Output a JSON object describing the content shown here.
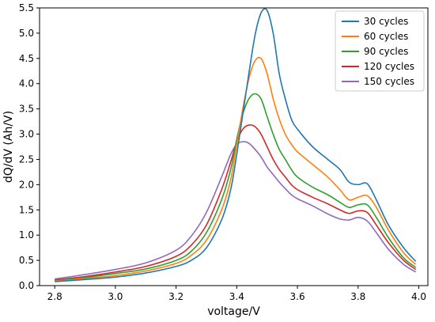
{
  "chart_data": {
    "type": "line",
    "title": "",
    "xlabel": "voltage/V",
    "ylabel": "dQ/dV (Ah/V)",
    "xlim": [
      2.75,
      4.03
    ],
    "ylim": [
      0,
      5.5
    ],
    "xticks": [
      2.8,
      3.0,
      3.2,
      3.4,
      3.6,
      3.8,
      4.0
    ],
    "xtick_labels": [
      "2.8",
      "3.0",
      "3.2",
      "3.4",
      "3.6",
      "3.8",
      "4.0"
    ],
    "yticks": [
      0,
      0.5,
      1.0,
      1.5,
      2.0,
      2.5,
      3.0,
      3.5,
      4.0,
      4.5,
      5.0,
      5.5
    ],
    "ytick_labels": [
      "0.0",
      "0.5",
      "1.0",
      "1.5",
      "2.0",
      "2.5",
      "3.0",
      "3.5",
      "4.0",
      "4.5",
      "5.0",
      "5.5"
    ],
    "grid": false,
    "legend_position": "top-right",
    "series": [
      {
        "name": "30 cycles",
        "color": "#1f77b4",
        "x": [
          2.8,
          2.9,
          3.0,
          3.1,
          3.2,
          3.25,
          3.3,
          3.35,
          3.38,
          3.4,
          3.42,
          3.44,
          3.46,
          3.48,
          3.5,
          3.52,
          3.54,
          3.56,
          3.58,
          3.6,
          3.65,
          3.7,
          3.74,
          3.77,
          3.8,
          3.83,
          3.86,
          3.9,
          3.95,
          3.99
        ],
        "y": [
          0.08,
          0.12,
          0.17,
          0.25,
          0.38,
          0.5,
          0.75,
          1.3,
          1.9,
          2.6,
          3.4,
          4.2,
          4.95,
          5.4,
          5.45,
          5.0,
          4.2,
          3.7,
          3.3,
          3.1,
          2.75,
          2.5,
          2.3,
          2.05,
          2.0,
          2.02,
          1.7,
          1.2,
          0.75,
          0.48
        ]
      },
      {
        "name": "60 cycles",
        "color": "#ff7f0e",
        "x": [
          2.8,
          2.9,
          3.0,
          3.1,
          3.2,
          3.25,
          3.3,
          3.35,
          3.38,
          3.4,
          3.42,
          3.44,
          3.46,
          3.48,
          3.5,
          3.52,
          3.54,
          3.56,
          3.58,
          3.6,
          3.65,
          3.7,
          3.74,
          3.77,
          3.8,
          3.83,
          3.86,
          3.9,
          3.95,
          3.99
        ],
        "y": [
          0.09,
          0.14,
          0.2,
          0.29,
          0.44,
          0.6,
          0.9,
          1.5,
          2.1,
          2.8,
          3.5,
          4.1,
          4.45,
          4.5,
          4.2,
          3.7,
          3.3,
          3.0,
          2.8,
          2.65,
          2.4,
          2.15,
          1.9,
          1.7,
          1.75,
          1.78,
          1.55,
          1.1,
          0.65,
          0.42
        ]
      },
      {
        "name": "90 cycles",
        "color": "#2ca02c",
        "x": [
          2.8,
          2.9,
          3.0,
          3.1,
          3.2,
          3.25,
          3.3,
          3.35,
          3.38,
          3.4,
          3.42,
          3.44,
          3.46,
          3.48,
          3.5,
          3.52,
          3.54,
          3.56,
          3.58,
          3.6,
          3.65,
          3.7,
          3.74,
          3.77,
          3.8,
          3.83,
          3.86,
          3.9,
          3.95,
          3.99
        ],
        "y": [
          0.1,
          0.16,
          0.24,
          0.33,
          0.5,
          0.68,
          1.05,
          1.7,
          2.3,
          2.9,
          3.4,
          3.7,
          3.8,
          3.7,
          3.35,
          3.0,
          2.7,
          2.5,
          2.3,
          2.15,
          1.95,
          1.8,
          1.65,
          1.55,
          1.6,
          1.6,
          1.35,
          0.95,
          0.55,
          0.36
        ]
      },
      {
        "name": "120 cycles",
        "color": "#d62728",
        "x": [
          2.8,
          2.9,
          3.0,
          3.1,
          3.2,
          3.25,
          3.3,
          3.35,
          3.38,
          3.4,
          3.42,
          3.44,
          3.46,
          3.48,
          3.5,
          3.52,
          3.54,
          3.56,
          3.58,
          3.6,
          3.65,
          3.7,
          3.74,
          3.77,
          3.8,
          3.83,
          3.86,
          3.9,
          3.95,
          3.99
        ],
        "y": [
          0.11,
          0.18,
          0.27,
          0.38,
          0.58,
          0.8,
          1.2,
          1.9,
          2.45,
          2.85,
          3.1,
          3.18,
          3.15,
          3.0,
          2.75,
          2.5,
          2.3,
          2.15,
          2.0,
          1.9,
          1.75,
          1.62,
          1.5,
          1.43,
          1.48,
          1.45,
          1.2,
          0.85,
          0.5,
          0.32
        ]
      },
      {
        "name": "150 cycles",
        "color": "#9467bd",
        "x": [
          2.8,
          2.9,
          3.0,
          3.1,
          3.2,
          3.25,
          3.3,
          3.35,
          3.38,
          3.4,
          3.42,
          3.44,
          3.46,
          3.48,
          3.5,
          3.52,
          3.54,
          3.56,
          3.58,
          3.6,
          3.65,
          3.7,
          3.74,
          3.77,
          3.8,
          3.83,
          3.86,
          3.9,
          3.95,
          3.99
        ],
        "y": [
          0.13,
          0.22,
          0.32,
          0.45,
          0.7,
          0.98,
          1.45,
          2.15,
          2.6,
          2.8,
          2.85,
          2.82,
          2.7,
          2.55,
          2.35,
          2.2,
          2.05,
          1.92,
          1.8,
          1.72,
          1.58,
          1.42,
          1.32,
          1.3,
          1.35,
          1.28,
          1.05,
          0.72,
          0.42,
          0.27
        ]
      }
    ]
  }
}
